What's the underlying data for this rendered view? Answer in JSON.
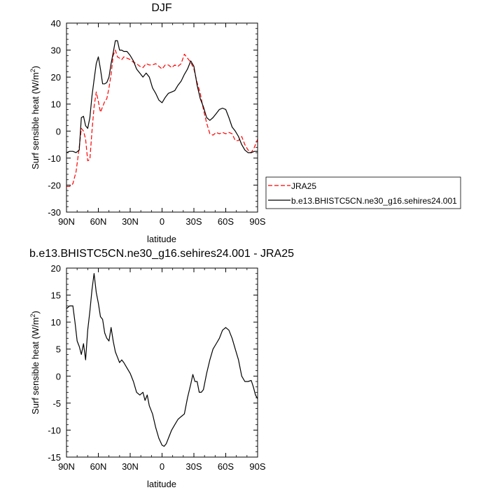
{
  "chart_data": [
    {
      "type": "line",
      "title": "DJF",
      "xlabel": "latitude",
      "ylabel": "Surf sensible heat (W/m²)",
      "ylabel_parts": {
        "base": "Surf sensible heat (W/m",
        "sup": "2",
        "close": ")"
      },
      "xlim": [
        90,
        -90
      ],
      "ylim": [
        -30,
        40
      ],
      "x_ticks": [
        90,
        60,
        30,
        0,
        -30,
        -60,
        -90
      ],
      "x_tick_labels": [
        "90N",
        "60N",
        "30N",
        "0",
        "30S",
        "60S",
        "90S"
      ],
      "y_ticks": [
        -30,
        -20,
        -10,
        0,
        10,
        20,
        30,
        40
      ],
      "y_tick_labels": [
        "-30",
        "-20",
        "-10",
        "0",
        "10",
        "20",
        "30",
        "40"
      ],
      "legend": "right",
      "series": [
        {
          "name": "JRA25",
          "color": "#ff0000",
          "dash": "dashed",
          "points": [
            [
              90,
              -20.5
            ],
            [
              87,
              -20.5
            ],
            [
              84,
              -19.5
            ],
            [
              81,
              -15
            ],
            [
              78,
              -6
            ],
            [
              76,
              1
            ],
            [
              74,
              0
            ],
            [
              72,
              -3
            ],
            [
              70,
              -11
            ],
            [
              68,
              -10.5
            ],
            [
              66,
              0
            ],
            [
              64,
              9
            ],
            [
              62,
              14.5
            ],
            [
              60,
              11
            ],
            [
              58,
              7
            ],
            [
              56,
              9
            ],
            [
              54,
              11
            ],
            [
              52,
              12
            ],
            [
              50,
              16
            ],
            [
              48,
              21
            ],
            [
              46,
              28
            ],
            [
              44,
              30
            ],
            [
              42,
              27.5
            ],
            [
              40,
              27
            ],
            [
              38,
              26.5
            ],
            [
              36,
              27.5
            ],
            [
              33,
              27
            ],
            [
              30,
              26.5
            ],
            [
              27,
              25.5
            ],
            [
              24,
              25
            ],
            [
              21,
              24
            ],
            [
              18,
              23.5
            ],
            [
              15,
              25
            ],
            [
              12,
              24.5
            ],
            [
              9,
              24.5
            ],
            [
              6,
              25
            ],
            [
              3,
              24
            ],
            [
              0,
              23
            ],
            [
              -3,
              24.5
            ],
            [
              -6,
              24.5
            ],
            [
              -9,
              23.5
            ],
            [
              -12,
              24.5
            ],
            [
              -15,
              24
            ],
            [
              -18,
              25
            ],
            [
              -21,
              28.5
            ],
            [
              -24,
              27
            ],
            [
              -27,
              25.5
            ],
            [
              -30,
              23
            ],
            [
              -33,
              18
            ],
            [
              -36,
              14
            ],
            [
              -39,
              8
            ],
            [
              -42,
              3
            ],
            [
              -45,
              -1
            ],
            [
              -48,
              -1.5
            ],
            [
              -51,
              -0.5
            ],
            [
              -54,
              -1
            ],
            [
              -57,
              -0.5
            ],
            [
              -60,
              -1
            ],
            [
              -63,
              -0.5
            ],
            [
              -66,
              -1
            ],
            [
              -69,
              -3.5
            ],
            [
              -72,
              -3.5
            ],
            [
              -75,
              -2
            ],
            [
              -78,
              -5
            ],
            [
              -81,
              -7
            ],
            [
              -84,
              -8
            ],
            [
              -87,
              -6
            ],
            [
              -90,
              -3
            ]
          ]
        },
        {
          "name": "b.e13.BHISTC5CN.ne30_g16.sehires24.001",
          "color": "#000000",
          "dash": "solid",
          "points": [
            [
              90,
              -8
            ],
            [
              87,
              -7.5
            ],
            [
              84,
              -7.5
            ],
            [
              81,
              -8
            ],
            [
              78,
              -7
            ],
            [
              76,
              5
            ],
            [
              74,
              5.5
            ],
            [
              72,
              2
            ],
            [
              70,
              1
            ],
            [
              68,
              5
            ],
            [
              66,
              13
            ],
            [
              64,
              19
            ],
            [
              62,
              25
            ],
            [
              60,
              27.5
            ],
            [
              58,
              23
            ],
            [
              56,
              17.5
            ],
            [
              54,
              17.5
            ],
            [
              52,
              18
            ],
            [
              50,
              20
            ],
            [
              48,
              25
            ],
            [
              46,
              29
            ],
            [
              44,
              33.5
            ],
            [
              42,
              33.5
            ],
            [
              40,
              30
            ],
            [
              38,
              30
            ],
            [
              36,
              29.5
            ],
            [
              33,
              29.5
            ],
            [
              30,
              28
            ],
            [
              27,
              26
            ],
            [
              24,
              23
            ],
            [
              21,
              21.5
            ],
            [
              18,
              20
            ],
            [
              15,
              21.5
            ],
            [
              12,
              20
            ],
            [
              9,
              16
            ],
            [
              6,
              14
            ],
            [
              3,
              11.5
            ],
            [
              0,
              10.5
            ],
            [
              -3,
              12.5
            ],
            [
              -6,
              14
            ],
            [
              -9,
              14.5
            ],
            [
              -12,
              15
            ],
            [
              -15,
              17
            ],
            [
              -18,
              18.5
            ],
            [
              -21,
              21
            ],
            [
              -24,
              23
            ],
            [
              -27,
              26
            ],
            [
              -30,
              24
            ],
            [
              -33,
              17
            ],
            [
              -36,
              12
            ],
            [
              -39,
              9
            ],
            [
              -42,
              5
            ],
            [
              -45,
              4
            ],
            [
              -48,
              5
            ],
            [
              -51,
              6.5
            ],
            [
              -54,
              8
            ],
            [
              -57,
              8.5
            ],
            [
              -60,
              8
            ],
            [
              -63,
              5
            ],
            [
              -66,
              1.5
            ],
            [
              -69,
              0
            ],
            [
              -72,
              -2
            ],
            [
              -75,
              -5
            ],
            [
              -78,
              -7
            ],
            [
              -81,
              -8
            ],
            [
              -84,
              -8
            ],
            [
              -87,
              -7.5
            ],
            [
              -90,
              -7.5
            ]
          ]
        }
      ]
    },
    {
      "type": "line",
      "title": "b.e13.BHISTC5CN.ne30_g16.sehires24.001 - JRA25",
      "xlabel": "latitude",
      "ylabel": "Surf sensible heat (W/m²)",
      "ylabel_parts": {
        "base": "Surf sensible heat (W/m",
        "sup": "2",
        "close": ")"
      },
      "xlim": [
        90,
        -90
      ],
      "ylim": [
        -15,
        20
      ],
      "x_ticks": [
        90,
        60,
        30,
        0,
        -30,
        -60,
        -90
      ],
      "x_tick_labels": [
        "90N",
        "60N",
        "30N",
        "0",
        "30S",
        "60S",
        "90S"
      ],
      "y_ticks": [
        -15,
        -10,
        -5,
        0,
        5,
        10,
        15,
        20
      ],
      "y_tick_labels": [
        "-15",
        "-10",
        "-5",
        "0",
        "5",
        "10",
        "15",
        "20"
      ],
      "series": [
        {
          "color": "#000000",
          "dash": "solid",
          "points": [
            [
              90,
              12.5
            ],
            [
              87,
              13
            ],
            [
              84,
              13
            ],
            [
              82,
              10
            ],
            [
              80,
              6.5
            ],
            [
              78,
              5.5
            ],
            [
              76,
              4
            ],
            [
              74,
              6
            ],
            [
              72,
              3
            ],
            [
              70,
              8.5
            ],
            [
              68,
              12
            ],
            [
              66,
              16
            ],
            [
              64,
              19
            ],
            [
              62,
              15.5
            ],
            [
              60,
              13.5
            ],
            [
              58,
              11
            ],
            [
              56,
              10.5
            ],
            [
              54,
              8
            ],
            [
              52,
              7
            ],
            [
              50,
              6.5
            ],
            [
              48,
              9
            ],
            [
              46,
              6.5
            ],
            [
              44,
              4.5
            ],
            [
              42,
              3.5
            ],
            [
              40,
              2.5
            ],
            [
              38,
              3
            ],
            [
              36,
              2.5
            ],
            [
              33,
              1.5
            ],
            [
              30,
              0.5
            ],
            [
              27,
              -1
            ],
            [
              24,
              -3
            ],
            [
              21,
              -3.5
            ],
            [
              18,
              -3
            ],
            [
              16,
              -4.5
            ],
            [
              14,
              -3.5
            ],
            [
              12,
              -5.5
            ],
            [
              9,
              -7
            ],
            [
              6,
              -9.5
            ],
            [
              3,
              -11.5
            ],
            [
              0,
              -12.8
            ],
            [
              -2,
              -13
            ],
            [
              -4,
              -12.5
            ],
            [
              -6,
              -11.5
            ],
            [
              -9,
              -10
            ],
            [
              -12,
              -9
            ],
            [
              -15,
              -8
            ],
            [
              -18,
              -7.5
            ],
            [
              -21,
              -7
            ],
            [
              -24,
              -4
            ],
            [
              -27,
              -1.5
            ],
            [
              -29,
              0.3
            ],
            [
              -31,
              -1
            ],
            [
              -33,
              -1
            ],
            [
              -35,
              -3
            ],
            [
              -37,
              -3
            ],
            [
              -39,
              -2.5
            ],
            [
              -42,
              0.5
            ],
            [
              -45,
              3
            ],
            [
              -48,
              5
            ],
            [
              -51,
              6
            ],
            [
              -54,
              7
            ],
            [
              -57,
              8.5
            ],
            [
              -60,
              9
            ],
            [
              -63,
              8.5
            ],
            [
              -66,
              7
            ],
            [
              -69,
              5
            ],
            [
              -72,
              3
            ],
            [
              -75,
              0
            ],
            [
              -78,
              -1
            ],
            [
              -81,
              -1
            ],
            [
              -84,
              -0.8
            ],
            [
              -86,
              -2
            ],
            [
              -88,
              -3.5
            ],
            [
              -90,
              -4.2
            ]
          ]
        }
      ]
    }
  ]
}
